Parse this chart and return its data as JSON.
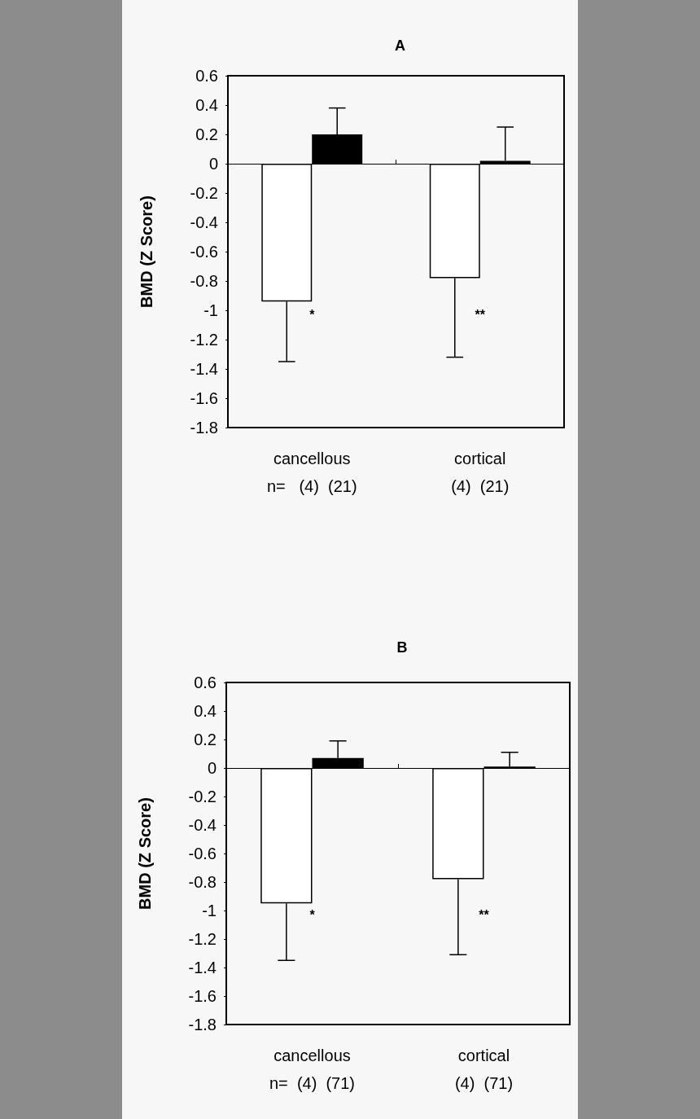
{
  "chart_data": [
    {
      "type": "bar",
      "title": "A",
      "ylabel": "BMD (Z Score)",
      "categories": [
        "cancellous",
        "cortical"
      ],
      "ylim": [
        -1.8,
        0.6
      ],
      "yticks": [
        -1.8,
        -1.6,
        -1.4,
        -1.2,
        -1,
        -0.8,
        -0.6,
        -0.4,
        -0.2,
        0,
        0.2,
        0.4,
        0.6
      ],
      "series": [
        {
          "color": "#ffffff",
          "values": [
            -0.94,
            -0.78
          ],
          "errors": [
            [
              -1.35,
              -0.94
            ],
            [
              -1.32,
              -0.78
            ]
          ]
        },
        {
          "color": "#000000",
          "values": [
            0.2,
            0.02
          ],
          "errors": [
            [
              0.2,
              0.38
            ],
            [
              0.02,
              0.25
            ]
          ]
        }
      ],
      "annotations": [
        "*",
        "**",
        "n=   (4)  (21)",
        "(4)  (21)"
      ]
    },
    {
      "type": "bar",
      "title": "B",
      "ylabel": "BMD (Z Score)",
      "categories": [
        "cancellous",
        "cortical"
      ],
      "ylim": [
        -1.8,
        0.6
      ],
      "yticks": [
        -1.8,
        -1.6,
        -1.4,
        -1.2,
        -1,
        -0.8,
        -0.6,
        -0.4,
        -0.2,
        0,
        0.2,
        0.4,
        0.6
      ],
      "series": [
        {
          "color": "#ffffff",
          "values": [
            -0.95,
            -0.78
          ],
          "errors": [
            [
              -1.35,
              -0.95
            ],
            [
              -1.31,
              -0.78
            ]
          ]
        },
        {
          "color": "#000000",
          "values": [
            0.07,
            0.01
          ],
          "errors": [
            [
              0.07,
              0.19
            ],
            [
              0.01,
              0.11
            ]
          ]
        }
      ],
      "annotations": [
        "*",
        "**",
        "n=  (4)  (71)",
        "(4)  (71)"
      ]
    }
  ]
}
